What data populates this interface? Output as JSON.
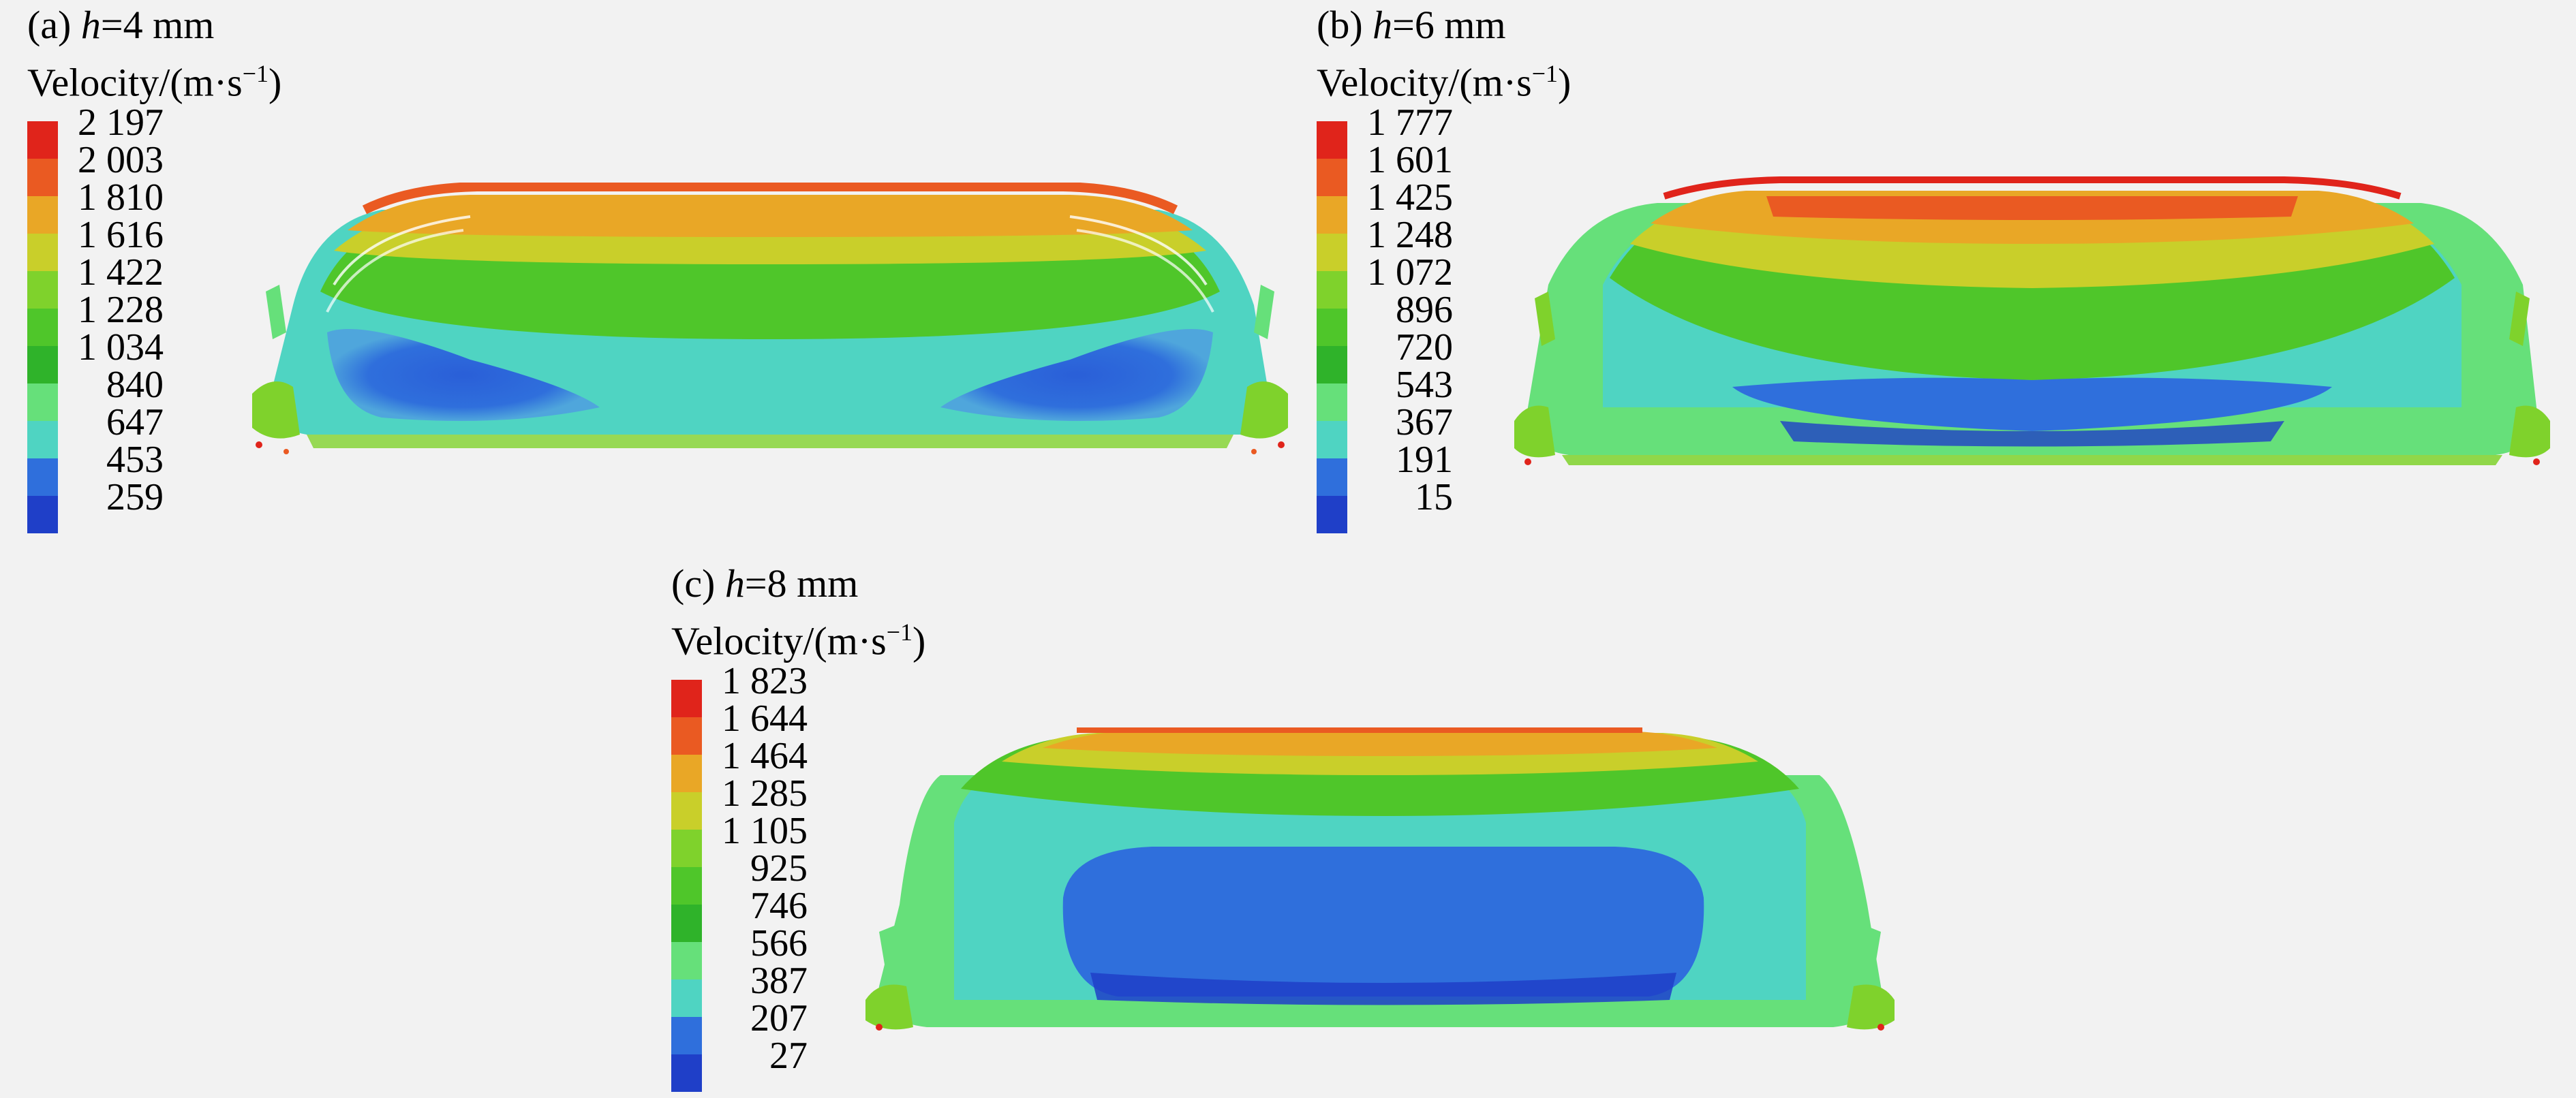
{
  "panels": [
    {
      "id": "a",
      "label_prefix": "(a) ",
      "label_var": "h",
      "label_value": "=4 mm",
      "legend_title": "Velocity/(m·s",
      "legend_sup": "−1",
      "legend_close": ")",
      "ticks": [
        "2 197",
        "2 003",
        "1 810",
        "1 616",
        "1 422",
        "1 228",
        "1 034",
        "840",
        "647",
        "453",
        "259"
      ]
    },
    {
      "id": "b",
      "label_prefix": "(b) ",
      "label_var": "h",
      "label_value": "=6 mm",
      "legend_title": "Velocity/(m·s",
      "legend_sup": "−1",
      "legend_close": ")",
      "ticks": [
        "1 777",
        "1 601",
        "1 425",
        "1 248",
        "1 072",
        "896",
        "720",
        "543",
        "367",
        "191",
        "15"
      ]
    },
    {
      "id": "c",
      "label_prefix": "(c) ",
      "label_var": "h",
      "label_value": "=8 mm",
      "legend_title": "Velocity/(m·s",
      "legend_sup": "−1",
      "legend_close": ")",
      "ticks": [
        "1 823",
        "1 644",
        "1 464",
        "1 285",
        "1 105",
        "925",
        "746",
        "566",
        "387",
        "207",
        "27"
      ]
    }
  ],
  "colormap": [
    "#e0241b",
    "#ea5a22",
    "#e9a726",
    "#c9cf2a",
    "#7fd22c",
    "#4fc62a",
    "#2fb32a",
    "#66e07a",
    "#4fd4c2",
    "#2f6fdc",
    "#1f3fc8"
  ]
}
